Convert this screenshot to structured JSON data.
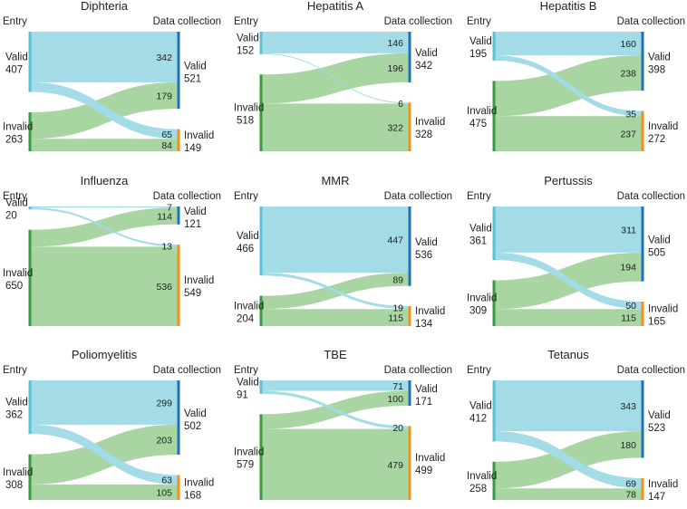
{
  "colors": {
    "valid_flow": "#a3dbe6",
    "invalid_flow": "#a8d5a2",
    "entry_valid_bar": "#5bc2d6",
    "entry_invalid_bar": "#3a9a3d",
    "dc_valid_bar": "#1f73b4",
    "dc_invalid_bar": "#f0911a"
  },
  "chart_data": [
    {
      "type": "sankey",
      "title": "Diphteria",
      "source_label": "Entry",
      "target_label": "Data collection",
      "category_labels": [
        "Valid",
        "Invalid"
      ],
      "entry": {
        "valid": 407,
        "invalid": 263
      },
      "data_collection": {
        "valid": 521,
        "invalid": 149
      },
      "flows": {
        "valid_to_valid": 342,
        "valid_to_invalid": 65,
        "invalid_to_valid": 179,
        "invalid_to_invalid": 84
      }
    },
    {
      "type": "sankey",
      "title": "Hepatitis A",
      "source_label": "Entry",
      "target_label": "Data collection",
      "category_labels": [
        "Valid",
        "Invalid"
      ],
      "entry": {
        "valid": 152,
        "invalid": 518
      },
      "data_collection": {
        "valid": 342,
        "invalid": 328
      },
      "flows": {
        "valid_to_valid": 146,
        "valid_to_invalid": 6,
        "invalid_to_valid": 196,
        "invalid_to_invalid": 322
      }
    },
    {
      "type": "sankey",
      "title": "Hepatitis B",
      "source_label": "Entry",
      "target_label": "Data collection",
      "category_labels": [
        "Valid",
        "Invalid"
      ],
      "entry": {
        "valid": 195,
        "invalid": 475
      },
      "data_collection": {
        "valid": 398,
        "invalid": 272
      },
      "flows": {
        "valid_to_valid": 160,
        "valid_to_invalid": 35,
        "invalid_to_valid": 238,
        "invalid_to_invalid": 237
      }
    },
    {
      "type": "sankey",
      "title": "Influenza",
      "source_label": "Entry",
      "target_label": "Data collection",
      "category_labels": [
        "Valid",
        "Invalid"
      ],
      "entry": {
        "valid": 20,
        "invalid": 650
      },
      "data_collection": {
        "valid": 121,
        "invalid": 549
      },
      "flows": {
        "valid_to_valid": 7,
        "valid_to_invalid": 13,
        "invalid_to_valid": 114,
        "invalid_to_invalid": 536
      }
    },
    {
      "type": "sankey",
      "title": "MMR",
      "source_label": "Entry",
      "target_label": "Data collection",
      "category_labels": [
        "Valid",
        "Invalid"
      ],
      "entry": {
        "valid": 466,
        "invalid": 204
      },
      "data_collection": {
        "valid": 536,
        "invalid": 134
      },
      "flows": {
        "valid_to_valid": 447,
        "valid_to_invalid": 19,
        "invalid_to_valid": 89,
        "invalid_to_invalid": 115
      }
    },
    {
      "type": "sankey",
      "title": "Pertussis",
      "source_label": "Entry",
      "target_label": "Data collection",
      "category_labels": [
        "Valid",
        "Invalid"
      ],
      "entry": {
        "valid": 361,
        "invalid": 309
      },
      "data_collection": {
        "valid": 505,
        "invalid": 165
      },
      "flows": {
        "valid_to_valid": 311,
        "valid_to_invalid": 50,
        "invalid_to_valid": 194,
        "invalid_to_invalid": 115
      }
    },
    {
      "type": "sankey",
      "title": "Poliomyelitis",
      "source_label": "Entry",
      "target_label": "Data collection",
      "category_labels": [
        "Valid",
        "Invalid"
      ],
      "entry": {
        "valid": 362,
        "invalid": 308
      },
      "data_collection": {
        "valid": 502,
        "invalid": 168
      },
      "flows": {
        "valid_to_valid": 299,
        "valid_to_invalid": 63,
        "invalid_to_valid": 203,
        "invalid_to_invalid": 105
      }
    },
    {
      "type": "sankey",
      "title": "TBE",
      "source_label": "Entry",
      "target_label": "Data collection",
      "category_labels": [
        "Valid",
        "Invalid"
      ],
      "entry": {
        "valid": 91,
        "invalid": 579
      },
      "data_collection": {
        "valid": 171,
        "invalid": 499
      },
      "flows": {
        "valid_to_valid": 71,
        "valid_to_invalid": 20,
        "invalid_to_valid": 100,
        "invalid_to_invalid": 479
      }
    },
    {
      "type": "sankey",
      "title": "Tetanus",
      "source_label": "Entry",
      "target_label": "Data collection",
      "category_labels": [
        "Valid",
        "Invalid"
      ],
      "entry": {
        "valid": 412,
        "invalid": 258
      },
      "data_collection": {
        "valid": 523,
        "invalid": 147
      },
      "flows": {
        "valid_to_valid": 343,
        "valid_to_invalid": 69,
        "invalid_to_valid": 180,
        "invalid_to_invalid": 78
      }
    }
  ]
}
